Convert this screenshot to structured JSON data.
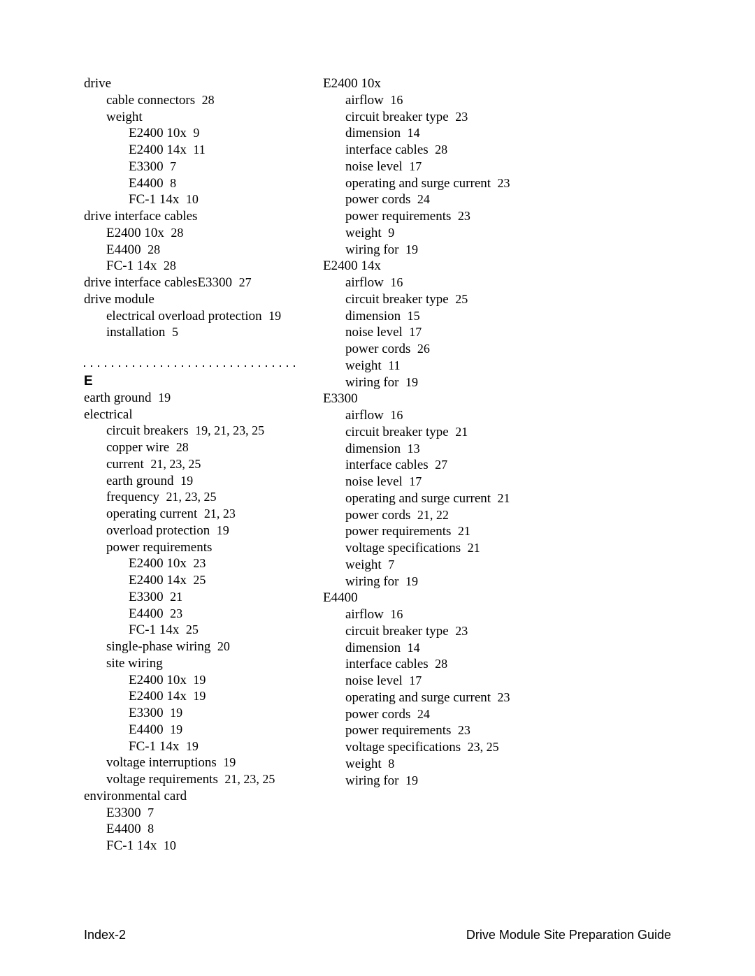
{
  "footer": {
    "left": "Index-2",
    "right": "Drive Module Site Preparation Guide"
  },
  "section_heading": "E",
  "col1": [
    {
      "indent": 0,
      "text": "drive"
    },
    {
      "indent": 1,
      "text": "cable connectors",
      "pages": "28"
    },
    {
      "indent": 1,
      "text": "weight"
    },
    {
      "indent": 2,
      "text": "E2400 10x",
      "pages": "9"
    },
    {
      "indent": 2,
      "text": "E2400 14x",
      "pages": "11"
    },
    {
      "indent": 2,
      "text": "E3300",
      "pages": "7"
    },
    {
      "indent": 2,
      "text": "E4400",
      "pages": "8"
    },
    {
      "indent": 2,
      "text": "FC-1 14x",
      "pages": "10"
    },
    {
      "indent": 0,
      "text": "drive interface cables"
    },
    {
      "indent": 1,
      "text": "E2400 10x",
      "pages": "28"
    },
    {
      "indent": 1,
      "text": "E4400",
      "pages": "28"
    },
    {
      "indent": 1,
      "text": "FC-1 14x",
      "pages": "28"
    },
    {
      "indent": 0,
      "text": "drive interface cablesE3300",
      "pages": "27"
    },
    {
      "indent": 0,
      "text": "drive module"
    },
    {
      "indent": 1,
      "text": "electrical overload protection",
      "pages": "19"
    },
    {
      "indent": 1,
      "text": "installation",
      "pages": "5"
    },
    {
      "sep": true
    },
    {
      "heading": true
    },
    {
      "indent": 0,
      "text": "earth ground",
      "pages": "19"
    },
    {
      "indent": 0,
      "text": "electrical"
    },
    {
      "indent": 1,
      "text": "circuit breakers",
      "pages": "19, 21, 23, 25"
    },
    {
      "indent": 1,
      "text": "copper wire",
      "pages": "28"
    },
    {
      "indent": 1,
      "text": "current",
      "pages": "21, 23, 25"
    },
    {
      "indent": 1,
      "text": "earth ground",
      "pages": "19"
    },
    {
      "indent": 1,
      "text": "frequency",
      "pages": "21, 23, 25"
    },
    {
      "indent": 1,
      "text": "operating current",
      "pages": "21, 23"
    },
    {
      "indent": 1,
      "text": "overload protection",
      "pages": "19"
    },
    {
      "indent": 1,
      "text": "power requirements"
    },
    {
      "indent": 2,
      "text": "E2400 10x",
      "pages": "23"
    },
    {
      "indent": 2,
      "text": "E2400 14x",
      "pages": "25"
    },
    {
      "indent": 2,
      "text": "E3300",
      "pages": "21"
    },
    {
      "indent": 2,
      "text": "E4400",
      "pages": "23"
    },
    {
      "indent": 2,
      "text": "FC-1 14x",
      "pages": "25"
    },
    {
      "indent": 1,
      "text": "single-phase wiring",
      "pages": "20"
    },
    {
      "indent": 1,
      "text": "site wiring"
    },
    {
      "indent": 2,
      "text": "E2400 10x",
      "pages": "19"
    },
    {
      "indent": 2,
      "text": "E2400 14x",
      "pages": "19"
    },
    {
      "indent": 2,
      "text": "E3300",
      "pages": "19"
    },
    {
      "indent": 2,
      "text": "E4400",
      "pages": "19"
    },
    {
      "indent": 2,
      "text": "FC-1 14x",
      "pages": "19"
    },
    {
      "indent": 1,
      "text": "voltage interruptions",
      "pages": "19"
    },
    {
      "indent": 1,
      "text": "voltage requirements",
      "pages": "21, 23, 25"
    },
    {
      "indent": 0,
      "text": "environmental card"
    },
    {
      "indent": 1,
      "text": "E3300",
      "pages": "7"
    },
    {
      "indent": 1,
      "text": "E4400",
      "pages": "8"
    },
    {
      "indent": 1,
      "text": "FC-1 14x",
      "pages": "10"
    }
  ],
  "col2": [
    {
      "indent": 0,
      "text": "E2400 10x"
    },
    {
      "indent": 1,
      "text": "airflow",
      "pages": "16"
    },
    {
      "indent": 1,
      "text": "circuit breaker type",
      "pages": "23"
    },
    {
      "indent": 1,
      "text": "dimension",
      "pages": "14"
    },
    {
      "indent": 1,
      "text": "interface cables",
      "pages": "28"
    },
    {
      "indent": 1,
      "text": "noise level",
      "pages": "17"
    },
    {
      "indent": 1,
      "text": "operating and surge current",
      "pages": "23"
    },
    {
      "indent": 1,
      "text": "power cords",
      "pages": "24"
    },
    {
      "indent": 1,
      "text": "power requirements",
      "pages": "23"
    },
    {
      "indent": 1,
      "text": "weight",
      "pages": "9"
    },
    {
      "indent": 1,
      "text": "wiring for",
      "pages": "19"
    },
    {
      "indent": 0,
      "text": "E2400 14x"
    },
    {
      "indent": 1,
      "text": "airflow",
      "pages": "16"
    },
    {
      "indent": 1,
      "text": "circuit breaker type",
      "pages": "25"
    },
    {
      "indent": 1,
      "text": "dimension",
      "pages": "15"
    },
    {
      "indent": 1,
      "text": "noise level",
      "pages": "17"
    },
    {
      "indent": 1,
      "text": "power cords",
      "pages": "26"
    },
    {
      "indent": 1,
      "text": "weight",
      "pages": "11"
    },
    {
      "indent": 1,
      "text": "wiring for",
      "pages": "19"
    },
    {
      "indent": 0,
      "text": "E3300"
    },
    {
      "indent": 1,
      "text": "airflow",
      "pages": "16"
    },
    {
      "indent": 1,
      "text": "circuit breaker type",
      "pages": "21"
    },
    {
      "indent": 1,
      "text": "dimension",
      "pages": "13"
    },
    {
      "indent": 1,
      "text": "interface cables",
      "pages": "27"
    },
    {
      "indent": 1,
      "text": "noise level",
      "pages": "17"
    },
    {
      "indent": 1,
      "text": "operating and surge current",
      "pages": "21"
    },
    {
      "indent": 1,
      "text": "power cords",
      "pages": "21, 22"
    },
    {
      "indent": 1,
      "text": "power requirements",
      "pages": "21"
    },
    {
      "indent": 1,
      "text": "voltage specifications",
      "pages": "21"
    },
    {
      "indent": 1,
      "text": "weight",
      "pages": "7"
    },
    {
      "indent": 1,
      "text": "wiring for",
      "pages": "19"
    },
    {
      "indent": 0,
      "text": "E4400"
    },
    {
      "indent": 1,
      "text": "airflow",
      "pages": "16"
    },
    {
      "indent": 1,
      "text": "circuit breaker type",
      "pages": "23"
    },
    {
      "indent": 1,
      "text": "dimension",
      "pages": "14"
    },
    {
      "indent": 1,
      "text": "interface cables",
      "pages": "28"
    },
    {
      "indent": 1,
      "text": "noise level",
      "pages": "17"
    },
    {
      "indent": 1,
      "text": "operating and surge current",
      "pages": "23"
    },
    {
      "indent": 1,
      "text": "power cords",
      "pages": "24"
    },
    {
      "indent": 1,
      "text": "power requirements",
      "pages": "23"
    },
    {
      "indent": 1,
      "text": "voltage specifications",
      "pages": "23, 25"
    },
    {
      "indent": 1,
      "text": "weight",
      "pages": "8"
    },
    {
      "indent": 1,
      "text": "wiring for",
      "pages": "19"
    }
  ]
}
